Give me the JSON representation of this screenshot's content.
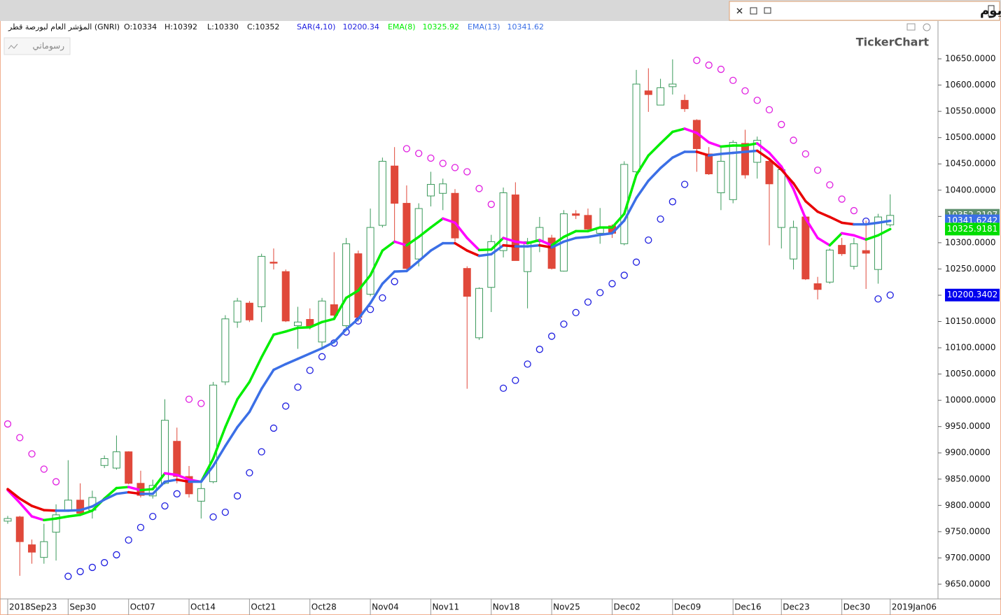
{
  "chart_data": {
    "type": "candlestick",
    "title": "المؤشر العام لبورصة قطر - يوم",
    "info": {
      "symbol": "المؤشر العام لبورصة قطر (GNRI)",
      "ohlc": [
        "O:10334",
        "H:10392",
        "L:10330",
        "C:10352"
      ]
    },
    "button": "رسوماتي",
    "watermark": "TickerChart",
    "categories": [
      "2018Sep23",
      null,
      null,
      null,
      null,
      "Sep30",
      null,
      null,
      null,
      null,
      "Oct07",
      null,
      null,
      null,
      null,
      "Oct14",
      null,
      null,
      null,
      null,
      "Oct21",
      null,
      null,
      null,
      null,
      "Oct28",
      null,
      null,
      null,
      null,
      "Nov04",
      null,
      null,
      null,
      null,
      "Nov11",
      null,
      null,
      null,
      null,
      "Nov18",
      null,
      null,
      null,
      null,
      "Nov25",
      null,
      null,
      null,
      null,
      "Dec02",
      null,
      null,
      null,
      null,
      "Dec09",
      null,
      null,
      null,
      null,
      "Dec16",
      null,
      null,
      null,
      "Dec23",
      null,
      null,
      null,
      null,
      "Dec30",
      null,
      null,
      null,
      "2019Jan06"
    ],
    "open": [
      9770,
      9778,
      9725,
      9701,
      9749,
      9791,
      9810,
      9791,
      9876,
      9871,
      9902,
      9842,
      9818,
      9842,
      9922,
      9855,
      9808,
      9845,
      10035,
      10149,
      10185,
      10178,
      10263,
      10245,
      10142,
      10154,
      10111,
      10182,
      10142,
      10279,
      10202,
      10333,
      10446,
      10375,
      10269,
      10389,
      10394,
      10394,
      10251,
      10119,
      10215,
      10285,
      10391,
      10245,
      10302,
      10309,
      10246,
      10355,
      10352,
      10318,
      10332,
      10298,
      10435,
      10589,
      10562,
      10597,
      10571,
      10533,
      10469,
      10395,
      10382,
      10489,
      10453,
      10455,
      10329,
      10269,
      10349,
      10222,
      10225,
      10295,
      10255,
      10285,
      10249,
      10334
    ],
    "high": [
      9780,
      9780,
      9735,
      9765,
      9802,
      9886,
      9842,
      9828,
      9895,
      9933,
      9903,
      9866,
      9849,
      10002,
      9948,
      9875,
      9842,
      10035,
      10162,
      10195,
      10189,
      10279,
      10289,
      10249,
      10178,
      10175,
      10195,
      10282,
      10309,
      10285,
      10365,
      10462,
      10482,
      10409,
      10375,
      10435,
      10422,
      10402,
      10255,
      10215,
      10315,
      10405,
      10415,
      10309,
      10349,
      10315,
      10362,
      10362,
      10365,
      10366,
      10335,
      10455,
      10629,
      10632,
      10612,
      10649,
      10582,
      10535,
      10482,
      10482,
      10495,
      10515,
      10502,
      10462,
      10445,
      10342,
      10352,
      10235,
      10289,
      10309,
      10309,
      10342,
      10355,
      10392
    ],
    "low": [
      9765,
      9666,
      9689,
      9689,
      9695,
      9791,
      9785,
      9775,
      9871,
      9868,
      9840,
      9815,
      9813,
      9840,
      9842,
      9815,
      9775,
      9842,
      10029,
      10138,
      10149,
      10149,
      10249,
      10149,
      10098,
      10135,
      10098,
      10155,
      10135,
      10150,
      10198,
      10329,
      10302,
      10249,
      10255,
      10369,
      10362,
      10302,
      10022,
      10115,
      10168,
      10272,
      10266,
      10175,
      10282,
      10249,
      10245,
      10345,
      10322,
      10298,
      10309,
      10295,
      10431,
      10549,
      10562,
      10582,
      10549,
      10435,
      10429,
      10362,
      10375,
      10422,
      10422,
      10295,
      10289,
      10249,
      10229,
      10192,
      10222,
      10275,
      10249,
      10212,
      10222,
      10330
    ],
    "close": [
      9775,
      9731,
      9711,
      9731,
      9782,
      9810,
      9785,
      9815,
      9889,
      9902,
      9842,
      9819,
      9838,
      9962,
      9855,
      9822,
      9832,
      10029,
      10155,
      10189,
      10153,
      10274,
      10261,
      10151,
      10149,
      10141,
      10189,
      10162,
      10298,
      10158,
      10329,
      10455,
      10375,
      10251,
      10365,
      10411,
      10412,
      10309,
      10198,
      10213,
      10302,
      10395,
      10266,
      10302,
      10329,
      10251,
      10355,
      10352,
      10326,
      10329,
      10318,
      10449,
      10602,
      10582,
      10595,
      10602,
      10555,
      10479,
      10431,
      10455,
      10491,
      10429,
      10495,
      10412,
      10439,
      10329,
      10231,
      10211,
      10286,
      10279,
      10298,
      10280,
      10349,
      10352
    ],
    "up_color": "#3c9a5c",
    "down_color": "#e0483a",
    "overlays": [
      {
        "type": "sar",
        "name": "SAR(4,10)",
        "legend_value": "10200.34",
        "color_above": "#e01ee0",
        "color_below": "#1e1ee0",
        "values": [
          9955,
          9929,
          9898,
          9869,
          9845,
          9665,
          9674,
          9682,
          9691,
          9706,
          9734,
          9758,
          9779,
          9799,
          9822,
          10002,
          9994,
          9778,
          9787,
          9818,
          9862,
          9902,
          9947,
          9989,
          10025,
          10057,
          10083,
          10109,
          10130,
          10151,
          10173,
          10195,
          10226,
          10479,
          10470,
          10461,
          10451,
          10443,
          10435,
          10403,
          10373,
          10023,
          10038,
          10069,
          10097,
          10122,
          10145,
          10167,
          10187,
          10205,
          10222,
          10238,
          10263,
          10305,
          10345,
          10378,
          10411,
          10647,
          10638,
          10630,
          10609,
          10589,
          10571,
          10553,
          10525,
          10495,
          10469,
          10438,
          10410,
          10383,
          10361,
          10341,
          10193,
          10200.3402
        ]
      },
      {
        "type": "ema",
        "name": "EMA(8)",
        "legend_value": "10325.92",
        "color": "#00ee00",
        "color_down": "#ff00ff",
        "values": [
          9829,
          9805,
          9779,
          9772,
          9775,
          9779,
          9782,
          9790,
          9813,
          9833,
          9835,
          9829,
          9831,
          9861,
          9858,
          9849,
          9845,
          9889,
          9949,
          10002,
          10035,
          10082,
          10125,
          10131,
          10138,
          10139,
          10149,
          10155,
          10195,
          10209,
          10238,
          10285,
          10302,
          10295,
          10311,
          10329,
          10346,
          10338,
          10309,
          10286,
          10287,
          10309,
          10302,
          10299,
          10305,
          10295,
          10311,
          10322,
          10322,
          10329,
          10329,
          10355,
          10429,
          10466,
          10489,
          10511,
          10517,
          10509,
          10491,
          10483,
          10485,
          10485,
          10489,
          10471,
          10445,
          10402,
          10346,
          10309,
          10295,
          10318,
          10314,
          10306,
          10314,
          10325.9181
        ]
      },
      {
        "type": "ema",
        "name": "EMA(13)",
        "legend_value": "10341.62",
        "color": "#3b6fe6",
        "color_down": "#e80000",
        "values": [
          9831,
          9813,
          9799,
          9791,
          9790,
          9790,
          9791,
          9798,
          9811,
          9822,
          9825,
          9822,
          9822,
          9845,
          9849,
          9845,
          9845,
          9875,
          9913,
          9949,
          9978,
          10022,
          10058,
          10069,
          10079,
          10089,
          10099,
          10111,
          10135,
          10155,
          10185,
          10222,
          10245,
          10246,
          10265,
          10285,
          10299,
          10299,
          10285,
          10275,
          10278,
          10295,
          10293,
          10293,
          10295,
          10291,
          10302,
          10309,
          10311,
          10315,
          10318,
          10342,
          10385,
          10418,
          10442,
          10462,
          10473,
          10473,
          10466,
          10469,
          10471,
          10473,
          10475,
          10459,
          10439,
          10413,
          10379,
          10359,
          10349,
          10338,
          10335,
          10335,
          10338,
          10341.6242
        ]
      }
    ],
    "price_tags": [
      {
        "value": 10352.2197,
        "color": "#5e8f6e"
      },
      {
        "value": 10341.6242,
        "color": "#3b6fe6"
      },
      {
        "value": 10325.9181,
        "color": "#00dd00"
      },
      {
        "value": 10200.3402,
        "color": "#0000ee"
      }
    ],
    "ylim": [
      9622,
      10722
    ],
    "yticks": [
      {
        "value": 10650,
        "label": "10650.0000"
      },
      {
        "value": 10600,
        "label": "10600.0000"
      },
      {
        "value": 10550,
        "label": "10550.0000"
      },
      {
        "value": 10500,
        "label": "10500.0000"
      },
      {
        "value": 10450,
        "label": "10450.0000"
      },
      {
        "value": 10400,
        "label": "10400.0000"
      },
      {
        "value": 10350,
        "label": "10350.0000"
      },
      {
        "value": 10300,
        "label": "10300.0000"
      },
      {
        "value": 10250,
        "label": "10250.0000"
      },
      {
        "value": 10200,
        "label": "10200.0000"
      },
      {
        "value": 10150,
        "label": "10150.0000"
      },
      {
        "value": 10100,
        "label": "10100.0000"
      },
      {
        "value": 10050,
        "label": "10050.0000"
      },
      {
        "value": 10000,
        "label": "10000.0000"
      },
      {
        "value": 9950,
        "label": "9950.0000"
      },
      {
        "value": 9900,
        "label": "9900.0000"
      },
      {
        "value": 9850,
        "label": "9850.0000"
      },
      {
        "value": 9800,
        "label": "9800.0000"
      },
      {
        "value": 9750,
        "label": "9750.0000"
      },
      {
        "value": 9700,
        "label": "9700.0000"
      },
      {
        "value": 9650,
        "label": "9650.0000"
      }
    ]
  }
}
